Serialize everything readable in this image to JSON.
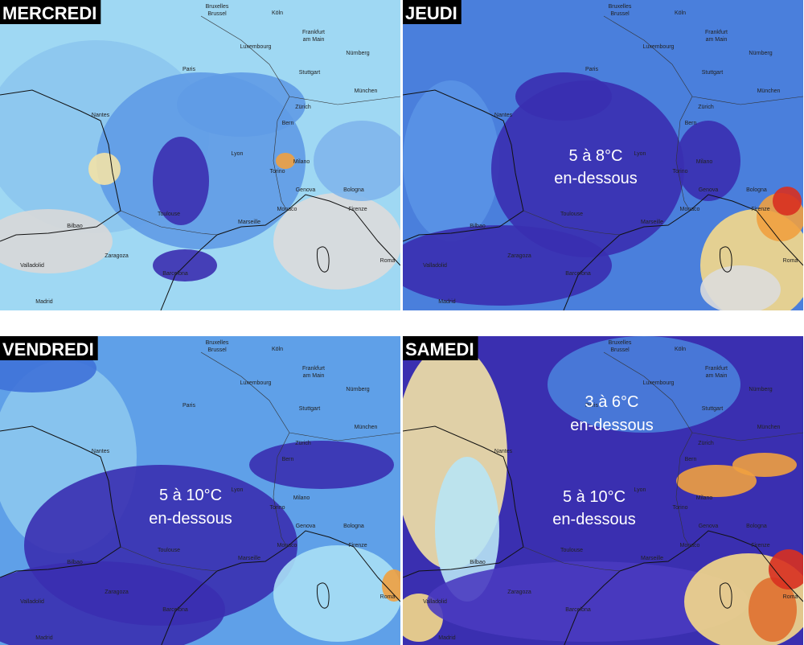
{
  "panels": [
    {
      "title": "MERCREDI",
      "annotations": []
    },
    {
      "title": "JEUDI",
      "annotations": [
        "5 à 8°C",
        "en-dessous"
      ]
    },
    {
      "title": "VENDREDI",
      "annotations": [
        "5 à 10°C",
        "en-dessous"
      ]
    },
    {
      "title": "SAMEDI",
      "annotations": [
        "3 à 6°C",
        "en-dessous",
        "5 à 10°C",
        "en-dessous"
      ]
    }
  ],
  "cities": [
    "Paris",
    "Nantes",
    "Lyon",
    "Toulouse",
    "Bilbao",
    "Marseille",
    "Monaco",
    "Barcelona",
    "Zaragoza",
    "Valladolid",
    "Madrid",
    "Genova",
    "Milano",
    "Torino",
    "Bologna",
    "Firenze",
    "Roma",
    "Bern",
    "Zürich",
    "Stuttgart",
    "München",
    "Luxembourg",
    "Köln",
    "Bruxelles",
    "Brussel",
    "Frankfurt",
    "am Main",
    "Nürnberg"
  ]
}
